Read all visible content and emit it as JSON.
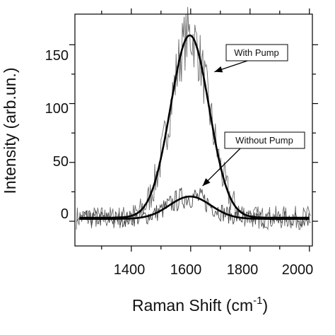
{
  "chart_data": {
    "type": "line",
    "title": "",
    "xlabel": "Raman Shift (cm",
    "xlabel_superscript": "-1",
    "xlabel_suffix": ")",
    "ylabel": "Intensity (arb.un.)",
    "xlim": [
      1210,
      2010
    ],
    "ylim": [
      -21,
      176
    ],
    "xticks": [
      1400,
      1600,
      1800,
      2000
    ],
    "yticks": [
      0,
      50,
      100,
      150
    ],
    "grid": false,
    "series": [
      {
        "name": "With Pump",
        "fit": {
          "amplitude": 155,
          "center": 1597,
          "width": 65,
          "baseline": 3
        },
        "noise_amplitude": 14,
        "color": "#000000"
      },
      {
        "name": "Without Pump",
        "fit": {
          "amplitude": 19,
          "center": 1598,
          "width": 70,
          "baseline": 2
        },
        "noise_amplitude": 10,
        "color": "#000000"
      }
    ],
    "annotations": [
      {
        "text": "With Pump",
        "points_to": {
          "x": 1680,
          "y": 127
        }
      },
      {
        "text": "Without Pump",
        "points_to": {
          "x": 1640,
          "y": 30
        }
      }
    ]
  }
}
